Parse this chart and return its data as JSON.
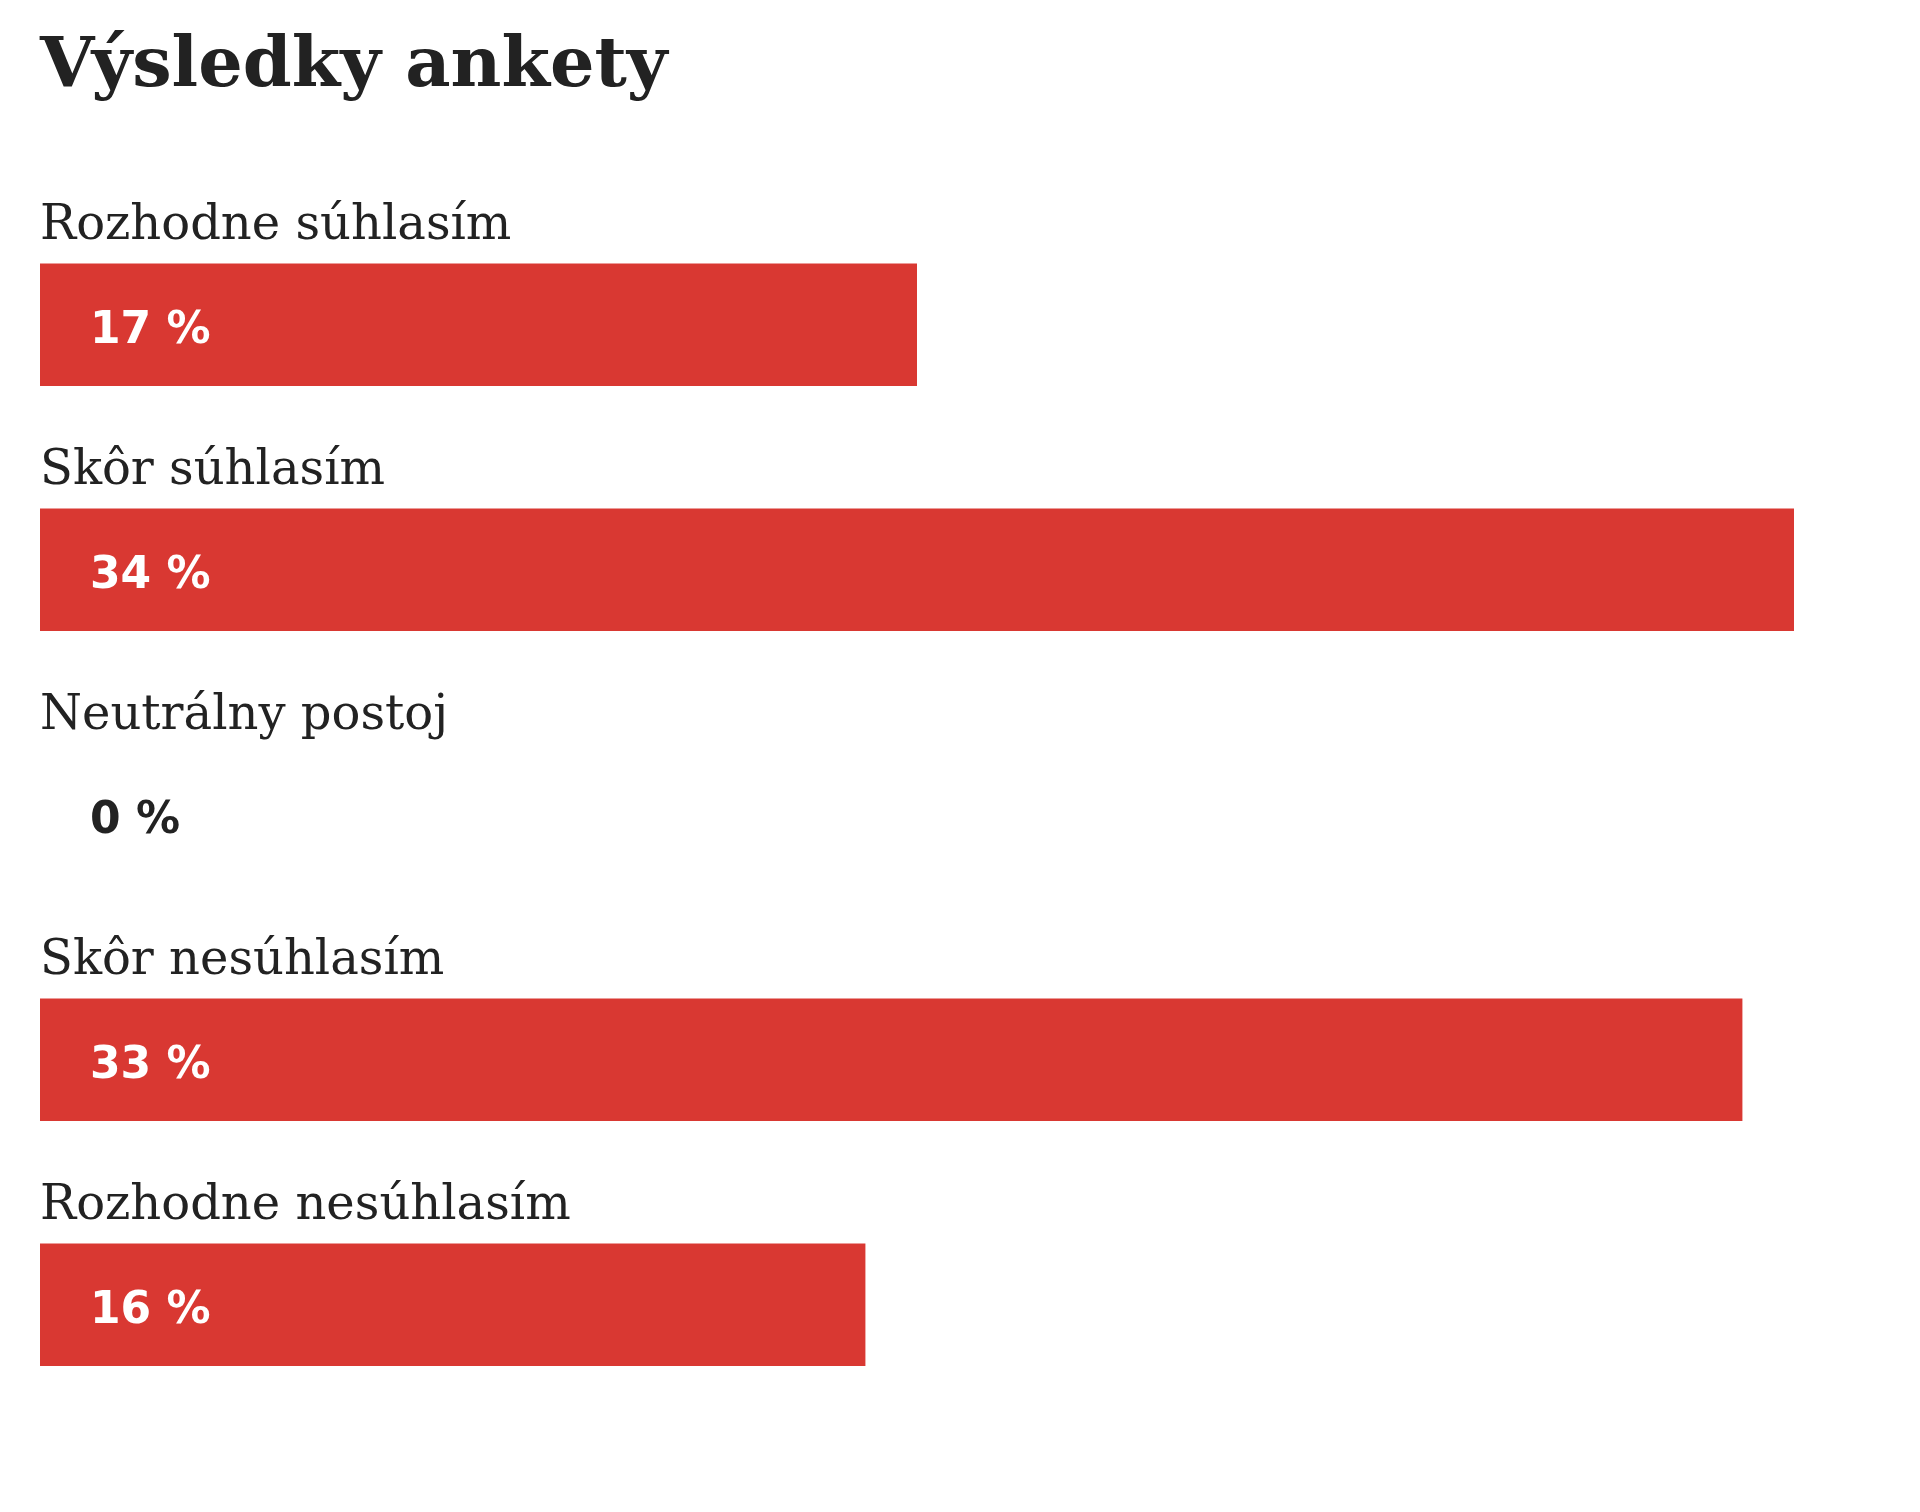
{
  "chart_data": {
    "type": "bar",
    "orientation": "horizontal",
    "title": "Výsledky ankety",
    "categories": [
      "Rozhodne súhlasím",
      "Skôr súhlasím",
      "Neutrálny postoj",
      "Skôr nesúhlasím",
      "Rozhodne nesúhlasím"
    ],
    "values": [
      17,
      34,
      0,
      33,
      16
    ],
    "value_labels": [
      "17 %",
      "34 %",
      "0 %",
      "33 %",
      "16 %"
    ],
    "color": "#d93832"
  }
}
